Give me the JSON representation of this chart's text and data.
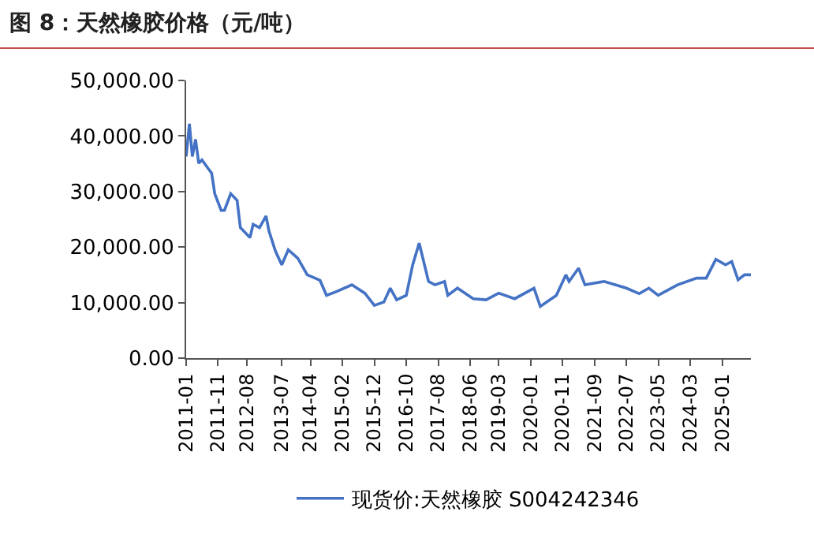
{
  "chart_data": {
    "type": "line",
    "title": "图 8：天然橡胶价格（元/吨）",
    "x": [
      "2011-01",
      "2011-02",
      "2011-03",
      "2011-04",
      "2011-05",
      "2011-06",
      "2011-08",
      "2011-09",
      "2011-10",
      "2011-12",
      "2012-01",
      "2012-03",
      "2012-05",
      "2012-06",
      "2012-09",
      "2012-10",
      "2012-12",
      "2013-02",
      "2013-03",
      "2013-05",
      "2013-07",
      "2013-09",
      "2013-12",
      "2014-03",
      "2014-07",
      "2014-09",
      "2014-12",
      "2015-05",
      "2015-09",
      "2015-12",
      "2016-03",
      "2016-05",
      "2016-07",
      "2016-10",
      "2016-12",
      "2017-02",
      "2017-05",
      "2017-07",
      "2017-10",
      "2017-11",
      "2018-02",
      "2018-07",
      "2018-11",
      "2019-03",
      "2019-08",
      "2020-02",
      "2020-04",
      "2020-09",
      "2020-12",
      "2021-01",
      "2021-04",
      "2021-06",
      "2021-12",
      "2022-07",
      "2022-11",
      "2023-02",
      "2023-05",
      "2023-11",
      "2024-05",
      "2024-08",
      "2024-11",
      "2025-02",
      "2025-04",
      "2025-06",
      "2025-08",
      "2025-10"
    ],
    "series": [
      {
        "name": "现货价:天然橡胶 S004242346",
        "color": "#4472c4",
        "values": [
          36300,
          42200,
          36300,
          39400,
          35100,
          35700,
          34100,
          33300,
          29600,
          26600,
          26600,
          29600,
          28400,
          23500,
          21700,
          24100,
          23500,
          25600,
          22900,
          19300,
          16800,
          19500,
          18000,
          15000,
          14000,
          11300,
          11950,
          13200,
          11700,
          9500,
          10100,
          12600,
          10500,
          11300,
          16800,
          20700,
          13800,
          13200,
          13800,
          11300,
          12600,
          10700,
          10500,
          11700,
          10700,
          12600,
          9300,
          11300,
          15000,
          13800,
          16200,
          13200,
          13800,
          12600,
          11600,
          12600,
          11300,
          13200,
          14400,
          14400,
          17800,
          16800,
          17400,
          14100,
          15000,
          15000
        ]
      }
    ],
    "xlim": [
      "2011-01",
      "2025-10"
    ],
    "xticks": [
      {
        "value": "2011-01",
        "label": "2011-01"
      },
      {
        "value": "2011-11",
        "label": "2011-11"
      },
      {
        "value": "2012-08",
        "label": "2012-08"
      },
      {
        "value": "2013-07",
        "label": "2013-07"
      },
      {
        "value": "2014-04",
        "label": "2014-04"
      },
      {
        "value": "2015-02",
        "label": "2015-02"
      },
      {
        "value": "2015-12",
        "label": "2015-12"
      },
      {
        "value": "2016-10",
        "label": "2016-10"
      },
      {
        "value": "2017-08",
        "label": "2017-08"
      },
      {
        "value": "2018-06",
        "label": "2018-06"
      },
      {
        "value": "2019-03",
        "label": "2019-03"
      },
      {
        "value": "2020-01",
        "label": "2020-01"
      },
      {
        "value": "2020-11",
        "label": "2020-11"
      },
      {
        "value": "2021-09",
        "label": "2021-09"
      },
      {
        "value": "2022-07",
        "label": "2022-07"
      },
      {
        "value": "2023-05",
        "label": "2023-05"
      },
      {
        "value": "2024-03",
        "label": "2024-03"
      },
      {
        "value": "2025-01",
        "label": "2025-01"
      }
    ],
    "ylim": [
      0,
      50000
    ],
    "yticks": [
      {
        "value": 0,
        "label": "0.00"
      },
      {
        "value": 10000,
        "label": "10,000.00"
      },
      {
        "value": 20000,
        "label": "20,000.00"
      },
      {
        "value": 30000,
        "label": "30,000.00"
      },
      {
        "value": 40000,
        "label": "40,000.00"
      },
      {
        "value": 50000,
        "label": "50,000.00"
      }
    ],
    "grid": false,
    "legend": "bottom",
    "marker": "none",
    "line_style": "solid"
  }
}
